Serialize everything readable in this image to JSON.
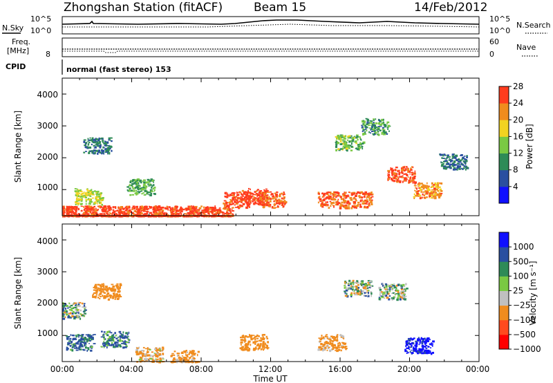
{
  "header": {
    "station": "Zhongshan Station (fitACF)",
    "beam": "Beam 15",
    "date": "14/Feb/2012"
  },
  "strips": {
    "nsky_label": "N.Sky",
    "nsearch_label": "N.Search",
    "noise_ticks_left": [
      "10^5",
      "10^0"
    ],
    "noise_ticks_right": [
      "10^5",
      "10^0"
    ],
    "freq_label_1": "Freq.",
    "freq_label_2": "[MHz]",
    "freq_ticks": [
      "8"
    ],
    "nave_label": "Nave",
    "nave_ticks": [
      "60",
      "0"
    ],
    "cpid_label": "CPID",
    "cpid_value": "normal (fast stereo) 153"
  },
  "colors": {
    "power": [
      "#1010ff",
      "#2a4fa0",
      "#2e8b57",
      "#7ac943",
      "#f2d321",
      "#f08c1e",
      "#ff3c1e"
    ],
    "velocity": [
      "#ff0000",
      "#ff4a1e",
      "#f08c1e",
      "#c0c0c0",
      "#7ac943",
      "#2e8b57",
      "#2a4fa0",
      "#1010ff"
    ],
    "power_bounds": [
      0,
      4,
      8,
      12,
      16,
      20,
      24,
      28,
      32
    ],
    "velocity_bounds": [
      -1200,
      -1000,
      -500,
      -100,
      -25,
      25,
      100,
      500,
      1000,
      1200
    ]
  },
  "chart_data": [
    {
      "type": "heatmap",
      "title": "Power",
      "ylabel": "Slant Range [km]",
      "xlim_hours": [
        0,
        24
      ],
      "ylim_km": [
        180,
        4500
      ],
      "yticks": [
        "1000",
        "2000",
        "3000",
        "4000"
      ],
      "colorbar_label": "Power [dB]",
      "colorbar_ticks": [
        "4",
        "8",
        "12",
        "16",
        "20",
        "24",
        "28"
      ],
      "rows": [
        {
          "t": 0.0,
          "r": 250,
          "v": 26
        },
        {
          "t": 1.0,
          "r": 250,
          "v": 27
        },
        {
          "t": 2.0,
          "r": 260,
          "v": 26
        },
        {
          "t": 3.0,
          "r": 250,
          "v": 27
        },
        {
          "t": 4.0,
          "r": 250,
          "v": 26
        },
        {
          "t": 5.0,
          "r": 260,
          "v": 27
        },
        {
          "t": 6.0,
          "r": 250,
          "v": 26
        },
        {
          "t": 7.0,
          "r": 250,
          "v": 27
        },
        {
          "t": 8.0,
          "r": 260,
          "v": 26
        },
        {
          "t": 9.0,
          "r": 250,
          "v": 26
        },
        {
          "t": 10.0,
          "r": 700,
          "v": 26
        },
        {
          "t": 11.0,
          "r": 800,
          "v": 27
        },
        {
          "t": 12.0,
          "r": 700,
          "v": 24
        },
        {
          "t": 15.5,
          "r": 700,
          "v": 25
        },
        {
          "t": 17.0,
          "r": 700,
          "v": 24
        },
        {
          "t": 19.5,
          "r": 1500,
          "v": 26
        },
        {
          "t": 21.0,
          "r": 1000,
          "v": 22
        },
        {
          "t": 1.5,
          "r": 800,
          "v": 16
        },
        {
          "t": 4.5,
          "r": 1100,
          "v": 12
        },
        {
          "t": 16.5,
          "r": 2500,
          "v": 13
        },
        {
          "t": 18.0,
          "r": 3000,
          "v": 10
        },
        {
          "t": 22.5,
          "r": 1900,
          "v": 8
        },
        {
          "t": 2.0,
          "r": 2400,
          "v": 8
        }
      ]
    },
    {
      "type": "heatmap",
      "title": "Velocity",
      "ylabel": "Slant Range [km]",
      "xlabel": "Time UT",
      "xlim_hours": [
        0,
        24
      ],
      "xticks": [
        "00:00",
        "04:00",
        "08:00",
        "12:00",
        "16:00",
        "20:00",
        "00:00"
      ],
      "ylim_km": [
        180,
        4500
      ],
      "yticks": [
        "1000",
        "2000",
        "3000",
        "4000"
      ],
      "colorbar_label": "Velocity [m s⁻¹]",
      "colorbar_ticks": [
        "1000",
        "500",
        "100",
        "25",
        "−25",
        "−100",
        "−500",
        "−1000"
      ],
      "rows": [
        {
          "t": 1.0,
          "r": 800,
          "v": 150
        },
        {
          "t": 3.0,
          "r": 900,
          "v": 120
        },
        {
          "t": 5.0,
          "r": 400,
          "v": -150
        },
        {
          "t": 7.0,
          "r": 300,
          "v": -200
        },
        {
          "t": 11.0,
          "r": 800,
          "v": -300
        },
        {
          "t": 15.5,
          "r": 800,
          "v": -200
        },
        {
          "t": 17.0,
          "r": 2500,
          "v": 0
        },
        {
          "t": 19.0,
          "r": 2400,
          "v": 5
        },
        {
          "t": 20.5,
          "r": 700,
          "v": 600
        },
        {
          "t": 2.5,
          "r": 2400,
          "v": -250
        },
        {
          "t": 0.5,
          "r": 1800,
          "v": 10
        }
      ]
    }
  ]
}
